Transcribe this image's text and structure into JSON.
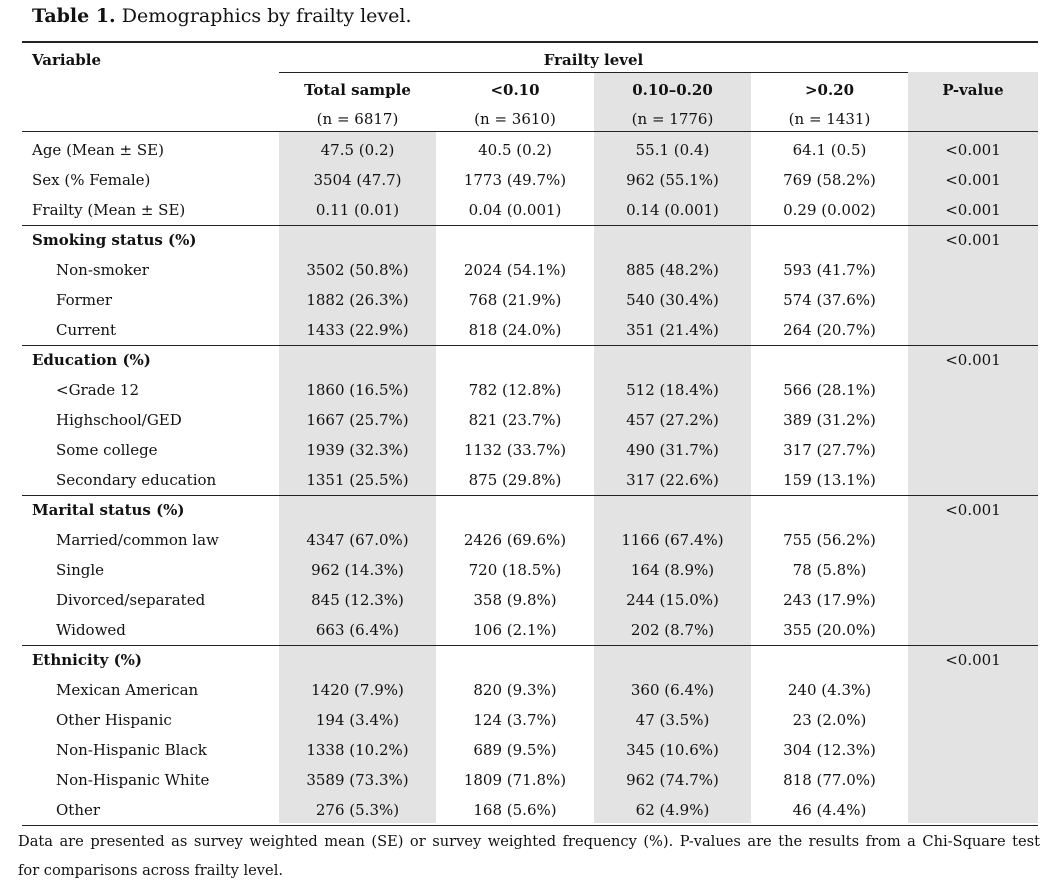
{
  "title": {
    "label": "Table 1.",
    "text": "Demographics by frailty level."
  },
  "table": {
    "header": {
      "variable": "Variable",
      "frailty": "Frailty level",
      "p": "P-value",
      "columns": [
        {
          "name": "Total sample",
          "n": "(n = 6817)"
        },
        {
          "name": "<0.10",
          "n": "(n = 3610)"
        },
        {
          "name": "0.10–0.20",
          "n": "(n = 1776)"
        },
        {
          "name": ">0.20",
          "n": "(n = 1431)"
        }
      ]
    },
    "rows": [
      {
        "label": "Age (Mean ± SE)",
        "cells": [
          "47.5 (0.2)",
          "40.5 (0.2)",
          "55.1 (0.4)",
          "64.1 (0.5)"
        ],
        "p": "<0.001"
      },
      {
        "label": "Sex (% Female)",
        "cells": [
          "3504 (47.7)",
          "1773 (49.7%)",
          "962 (55.1%)",
          "769 (58.2%)"
        ],
        "p": "<0.001"
      },
      {
        "label": "Frailty (Mean ± SE)",
        "cells": [
          "0.11 (0.01)",
          "0.04 (0.001)",
          "0.14 (0.001)",
          "0.29 (0.002)"
        ],
        "p": "<0.001"
      }
    ],
    "sections": [
      {
        "title": "Smoking status (%)",
        "p": "<0.001",
        "rows": [
          {
            "label": "Non-smoker",
            "cells": [
              "3502 (50.8%)",
              "2024 (54.1%)",
              "885 (48.2%)",
              "593 (41.7%)"
            ]
          },
          {
            "label": "Former",
            "cells": [
              "1882 (26.3%)",
              "768 (21.9%)",
              "540 (30.4%)",
              "574 (37.6%)"
            ]
          },
          {
            "label": "Current",
            "cells": [
              "1433 (22.9%)",
              "818 (24.0%)",
              "351 (21.4%)",
              "264 (20.7%)"
            ]
          }
        ]
      },
      {
        "title": "Education (%)",
        "p": "<0.001",
        "rows": [
          {
            "label": "<Grade 12",
            "cells": [
              "1860 (16.5%)",
              "782 (12.8%)",
              "512 (18.4%)",
              "566 (28.1%)"
            ]
          },
          {
            "label": "Highschool/GED",
            "cells": [
              "1667 (25.7%)",
              "821 (23.7%)",
              "457 (27.2%)",
              "389 (31.2%)"
            ]
          },
          {
            "label": "Some college",
            "cells": [
              "1939 (32.3%)",
              "1132 (33.7%)",
              "490 (31.7%)",
              "317 (27.7%)"
            ]
          },
          {
            "label": "Secondary education",
            "cells": [
              "1351 (25.5%)",
              "875 (29.8%)",
              "317 (22.6%)",
              "159 (13.1%)"
            ]
          }
        ]
      },
      {
        "title": "Marital status (%)",
        "p": "<0.001",
        "rows": [
          {
            "label": "Married/common law",
            "cells": [
              "4347 (67.0%)",
              "2426 (69.6%)",
              "1166 (67.4%)",
              "755 (56.2%)"
            ]
          },
          {
            "label": "Single",
            "cells": [
              "962 (14.3%)",
              "720 (18.5%)",
              "164 (8.9%)",
              "78 (5.8%)"
            ]
          },
          {
            "label": "Divorced/separated",
            "cells": [
              "845 (12.3%)",
              "358 (9.8%)",
              "244 (15.0%)",
              "243 (17.9%)"
            ]
          },
          {
            "label": "Widowed",
            "cells": [
              "663 (6.4%)",
              "106 (2.1%)",
              "202 (8.7%)",
              "355 (20.0%)"
            ]
          }
        ]
      },
      {
        "title": "Ethnicity (%)",
        "p": "<0.001",
        "rows": [
          {
            "label": "Mexican American",
            "cells": [
              "1420 (7.9%)",
              "820 (9.3%)",
              "360 (6.4%)",
              "240 (4.3%)"
            ]
          },
          {
            "label": "Other Hispanic",
            "cells": [
              "194 (3.4%)",
              "124 (3.7%)",
              "47 (3.5%)",
              "23 (2.0%)"
            ]
          },
          {
            "label": "Non-Hispanic Black",
            "cells": [
              "1338 (10.2%)",
              "689 (9.5%)",
              "345 (10.6%)",
              "304 (12.3%)"
            ]
          },
          {
            "label": "Non-Hispanic White",
            "cells": [
              "3589 (73.3%)",
              "1809 (71.8%)",
              "962 (74.7%)",
              "818 (77.0%)"
            ]
          },
          {
            "label": "Other",
            "cells": [
              "276 (5.3%)",
              "168 (5.6%)",
              "62 (4.9%)",
              "46 (4.4%)"
            ]
          }
        ]
      }
    ]
  },
  "footnote": [
    "Data are presented as survey weighted mean (SE) or survey weighted frequency (%). P-values are the results from a Chi-Square test",
    "for comparisons across frailty level."
  ]
}
